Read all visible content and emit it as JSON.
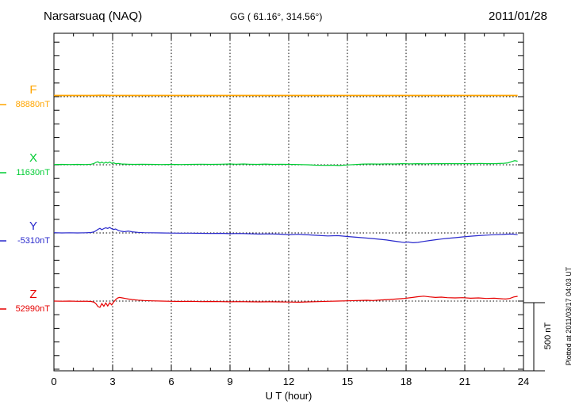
{
  "header": {
    "station": "Narsarsuaq (NAQ)",
    "coords": "GG ( 61.16°, 314.56°)",
    "date": "2011/01/28"
  },
  "xaxis": {
    "label": "U T (hour)"
  },
  "scale_bar": {
    "label": "500 nT"
  },
  "footer": {
    "plotted_at": "Plotted at 2011/03/17 04:03 UT"
  },
  "chart_data": {
    "type": "line",
    "title": "Narsarsuaq (NAQ) magnetogram, 2011/01/28",
    "xlabel": "U T (hour)",
    "x_range": [
      0,
      24
    ],
    "x_ticks": [
      0,
      3,
      6,
      9,
      12,
      15,
      18,
      21,
      24
    ],
    "grid_hours": [
      3,
      6,
      9,
      12,
      15,
      18,
      21
    ],
    "scale_bar_nT": 500,
    "minor_tick_nT": 100,
    "y_units": "nT offset from component baseline",
    "grid": "dotted vertical at 3h intervals; dotted horizontal baseline per component",
    "series": [
      {
        "name": "F",
        "baseline_label": "88880nT",
        "baseline_nT": 88880,
        "color": "#FFA500",
        "points": [
          [
            0,
            9
          ],
          [
            2,
            9
          ],
          [
            2.5,
            10
          ],
          [
            3,
            9
          ],
          [
            5,
            9
          ],
          [
            7,
            9
          ],
          [
            9,
            9
          ],
          [
            11,
            9
          ],
          [
            13,
            9
          ],
          [
            15,
            9
          ],
          [
            17,
            9
          ],
          [
            19,
            9
          ],
          [
            21,
            9
          ],
          [
            23,
            9
          ],
          [
            23.7,
            9
          ]
        ]
      },
      {
        "name": "X",
        "baseline_label": "11630nT",
        "baseline_nT": 11630,
        "color": "#00CC33",
        "points": [
          [
            0,
            2
          ],
          [
            0.4,
            3
          ],
          [
            0.8,
            2
          ],
          [
            1.2,
            3
          ],
          [
            1.6,
            2
          ],
          [
            1.9,
            4
          ],
          [
            2.05,
            10
          ],
          [
            2.15,
            18
          ],
          [
            2.25,
            22
          ],
          [
            2.35,
            12
          ],
          [
            2.45,
            20
          ],
          [
            2.55,
            11
          ],
          [
            2.65,
            19
          ],
          [
            2.75,
            13
          ],
          [
            2.85,
            21
          ],
          [
            2.95,
            11
          ],
          [
            3.05,
            15
          ],
          [
            3.15,
            8
          ],
          [
            3.3,
            10
          ],
          [
            3.45,
            6
          ],
          [
            3.6,
            5
          ],
          [
            3.8,
            4
          ],
          [
            4.1,
            3
          ],
          [
            4.5,
            4
          ],
          [
            5,
            3
          ],
          [
            5.5,
            2
          ],
          [
            6,
            3
          ],
          [
            6.5,
            2
          ],
          [
            7,
            3
          ],
          [
            7.5,
            4
          ],
          [
            8,
            3
          ],
          [
            8.5,
            4
          ],
          [
            9,
            6
          ],
          [
            9.3,
            4
          ],
          [
            9.7,
            6
          ],
          [
            10,
            4
          ],
          [
            10.4,
            3
          ],
          [
            10.8,
            5
          ],
          [
            11.2,
            3
          ],
          [
            11.6,
            4
          ],
          [
            12,
            3
          ],
          [
            12.5,
            2
          ],
          [
            13,
            0
          ],
          [
            13.4,
            -3
          ],
          [
            13.8,
            -4
          ],
          [
            14.2,
            -3
          ],
          [
            14.6,
            -5
          ],
          [
            15,
            -1
          ],
          [
            15.4,
            2
          ],
          [
            15.8,
            5
          ],
          [
            16.2,
            6
          ],
          [
            16.6,
            5
          ],
          [
            17,
            7
          ],
          [
            17.4,
            6
          ],
          [
            17.8,
            8
          ],
          [
            18.2,
            7
          ],
          [
            18.6,
            8
          ],
          [
            19,
            7
          ],
          [
            19.4,
            9
          ],
          [
            19.8,
            8
          ],
          [
            20.2,
            9
          ],
          [
            20.6,
            8
          ],
          [
            21,
            9
          ],
          [
            21.4,
            8
          ],
          [
            21.8,
            10
          ],
          [
            22.2,
            8
          ],
          [
            22.6,
            9
          ],
          [
            23,
            11
          ],
          [
            23.2,
            14
          ],
          [
            23.4,
            24
          ],
          [
            23.55,
            30
          ],
          [
            23.7,
            26
          ]
        ]
      },
      {
        "name": "Y",
        "baseline_label": "-5310nT",
        "baseline_nT": -5310,
        "color": "#2929CC",
        "points": [
          [
            0,
            2
          ],
          [
            0.4,
            0
          ],
          [
            0.8,
            1
          ],
          [
            1.2,
            0
          ],
          [
            1.6,
            1
          ],
          [
            1.9,
            3
          ],
          [
            2.05,
            8
          ],
          [
            2.15,
            16
          ],
          [
            2.25,
            26
          ],
          [
            2.35,
            34
          ],
          [
            2.45,
            24
          ],
          [
            2.55,
            32
          ],
          [
            2.65,
            38
          ],
          [
            2.75,
            33
          ],
          [
            2.85,
            40
          ],
          [
            2.95,
            31
          ],
          [
            3.05,
            25
          ],
          [
            3.15,
            29
          ],
          [
            3.3,
            18
          ],
          [
            3.45,
            12
          ],
          [
            3.6,
            9
          ],
          [
            3.8,
            14
          ],
          [
            4,
            8
          ],
          [
            4.3,
            4
          ],
          [
            4.6,
            2
          ],
          [
            5,
            1
          ],
          [
            5.5,
            0
          ],
          [
            6,
            -1
          ],
          [
            6.5,
            -2
          ],
          [
            7,
            -2
          ],
          [
            7.5,
            -3
          ],
          [
            8,
            -4
          ],
          [
            8.5,
            -3
          ],
          [
            9,
            -5
          ],
          [
            9.5,
            -4
          ],
          [
            10,
            -6
          ],
          [
            10.5,
            -8
          ],
          [
            11,
            -7
          ],
          [
            11.5,
            -9
          ],
          [
            12,
            -12
          ],
          [
            12.5,
            -10
          ],
          [
            13,
            -14
          ],
          [
            13.5,
            -18
          ],
          [
            14,
            -22
          ],
          [
            14.5,
            -20
          ],
          [
            15,
            -26
          ],
          [
            15.5,
            -32
          ],
          [
            16,
            -38
          ],
          [
            16.5,
            -44
          ],
          [
            17,
            -52
          ],
          [
            17.3,
            -58
          ],
          [
            17.6,
            -64
          ],
          [
            17.9,
            -70
          ],
          [
            18.1,
            -66
          ],
          [
            18.35,
            -72
          ],
          [
            18.6,
            -69
          ],
          [
            18.9,
            -62
          ],
          [
            19.2,
            -56
          ],
          [
            19.5,
            -50
          ],
          [
            19.8,
            -45
          ],
          [
            20.1,
            -40
          ],
          [
            20.5,
            -35
          ],
          [
            20.9,
            -29
          ],
          [
            21.3,
            -24
          ],
          [
            21.7,
            -20
          ],
          [
            22.1,
            -16
          ],
          [
            22.5,
            -13
          ],
          [
            22.9,
            -11
          ],
          [
            23.2,
            -9
          ],
          [
            23.45,
            -8
          ],
          [
            23.7,
            -13
          ]
        ]
      },
      {
        "name": "Z",
        "baseline_label": "52990nT",
        "baseline_nT": 52990,
        "color": "#E60000",
        "points": [
          [
            0,
            0
          ],
          [
            0.4,
            -1
          ],
          [
            0.8,
            0
          ],
          [
            1.2,
            -2
          ],
          [
            1.6,
            -1
          ],
          [
            1.9,
            -3
          ],
          [
            2.05,
            -8
          ],
          [
            2.15,
            -20
          ],
          [
            2.25,
            -40
          ],
          [
            2.35,
            -46
          ],
          [
            2.45,
            -18
          ],
          [
            2.55,
            -38
          ],
          [
            2.65,
            -14
          ],
          [
            2.75,
            -36
          ],
          [
            2.85,
            -12
          ],
          [
            2.95,
            -28
          ],
          [
            3.05,
            -8
          ],
          [
            3.15,
            10
          ],
          [
            3.25,
            22
          ],
          [
            3.35,
            27
          ],
          [
            3.5,
            23
          ],
          [
            3.65,
            19
          ],
          [
            3.8,
            15
          ],
          [
            4,
            11
          ],
          [
            4.3,
            7
          ],
          [
            4.6,
            4
          ],
          [
            5,
            2
          ],
          [
            5.5,
            0
          ],
          [
            6,
            -2
          ],
          [
            6.5,
            -3
          ],
          [
            7,
            -2
          ],
          [
            7.5,
            -4
          ],
          [
            8,
            -3
          ],
          [
            8.5,
            -4
          ],
          [
            9,
            -5
          ],
          [
            9.5,
            -4
          ],
          [
            10,
            -5
          ],
          [
            10.5,
            -6
          ],
          [
            11,
            -5
          ],
          [
            11.5,
            -6
          ],
          [
            12,
            -7
          ],
          [
            12.5,
            -8
          ],
          [
            13,
            -6
          ],
          [
            13.5,
            -4
          ],
          [
            14,
            -2
          ],
          [
            14.5,
            0
          ],
          [
            15,
            2
          ],
          [
            15.5,
            4
          ],
          [
            16,
            6
          ],
          [
            16.3,
            4
          ],
          [
            16.7,
            8
          ],
          [
            17.1,
            11
          ],
          [
            17.5,
            15
          ],
          [
            17.9,
            19
          ],
          [
            18.3,
            26
          ],
          [
            18.6,
            32
          ],
          [
            18.9,
            36
          ],
          [
            19.2,
            31
          ],
          [
            19.5,
            27
          ],
          [
            19.8,
            29
          ],
          [
            20.1,
            25
          ],
          [
            20.5,
            23
          ],
          [
            20.9,
            25
          ],
          [
            21.3,
            21
          ],
          [
            21.7,
            23
          ],
          [
            22.1,
            19
          ],
          [
            22.5,
            21
          ],
          [
            22.9,
            17
          ],
          [
            23.1,
            15
          ],
          [
            23.3,
            19
          ],
          [
            23.5,
            30
          ],
          [
            23.7,
            35
          ]
        ]
      }
    ]
  }
}
